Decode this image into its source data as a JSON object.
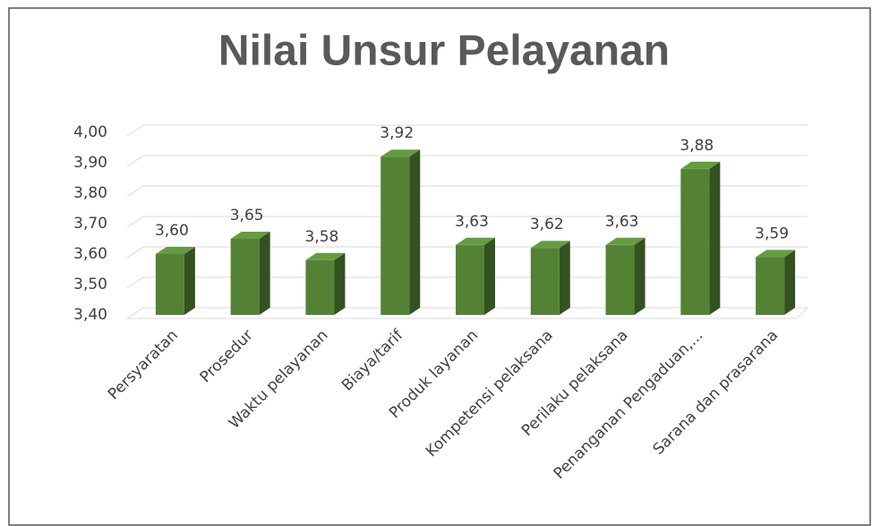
{
  "chart_data": {
    "type": "bar3d",
    "title": "Nilai  Unsur Pelayanan",
    "categories": [
      "Persyaratan",
      "Prosedur",
      "Waktu pelayanan",
      "Biaya/tarif",
      "Produk layanan",
      "Kompetensi pelaksana",
      "Perilaku pelaksana",
      "Penanganan Pengaduan,...",
      "Sarana dan prasarana"
    ],
    "values": [
      3.6,
      3.65,
      3.58,
      3.92,
      3.63,
      3.62,
      3.63,
      3.88,
      3.59
    ],
    "value_labels": [
      "3,60",
      "3,65",
      "3,58",
      "3,92",
      "3,63",
      "3,62",
      "3,63",
      "3,88",
      "3,59"
    ],
    "color": "#548235",
    "ylim": [
      3.4,
      4.0
    ],
    "yticks": [
      {
        "value": 3.4,
        "label": "3,40"
      },
      {
        "value": 3.5,
        "label": "3,50"
      },
      {
        "value": 3.6,
        "label": "3,60"
      },
      {
        "value": 3.7,
        "label": "3,70"
      },
      {
        "value": 3.8,
        "label": "3,80"
      },
      {
        "value": 3.9,
        "label": "3,90"
      },
      {
        "value": 4.0,
        "label": "4,00"
      }
    ],
    "grid": true
  }
}
